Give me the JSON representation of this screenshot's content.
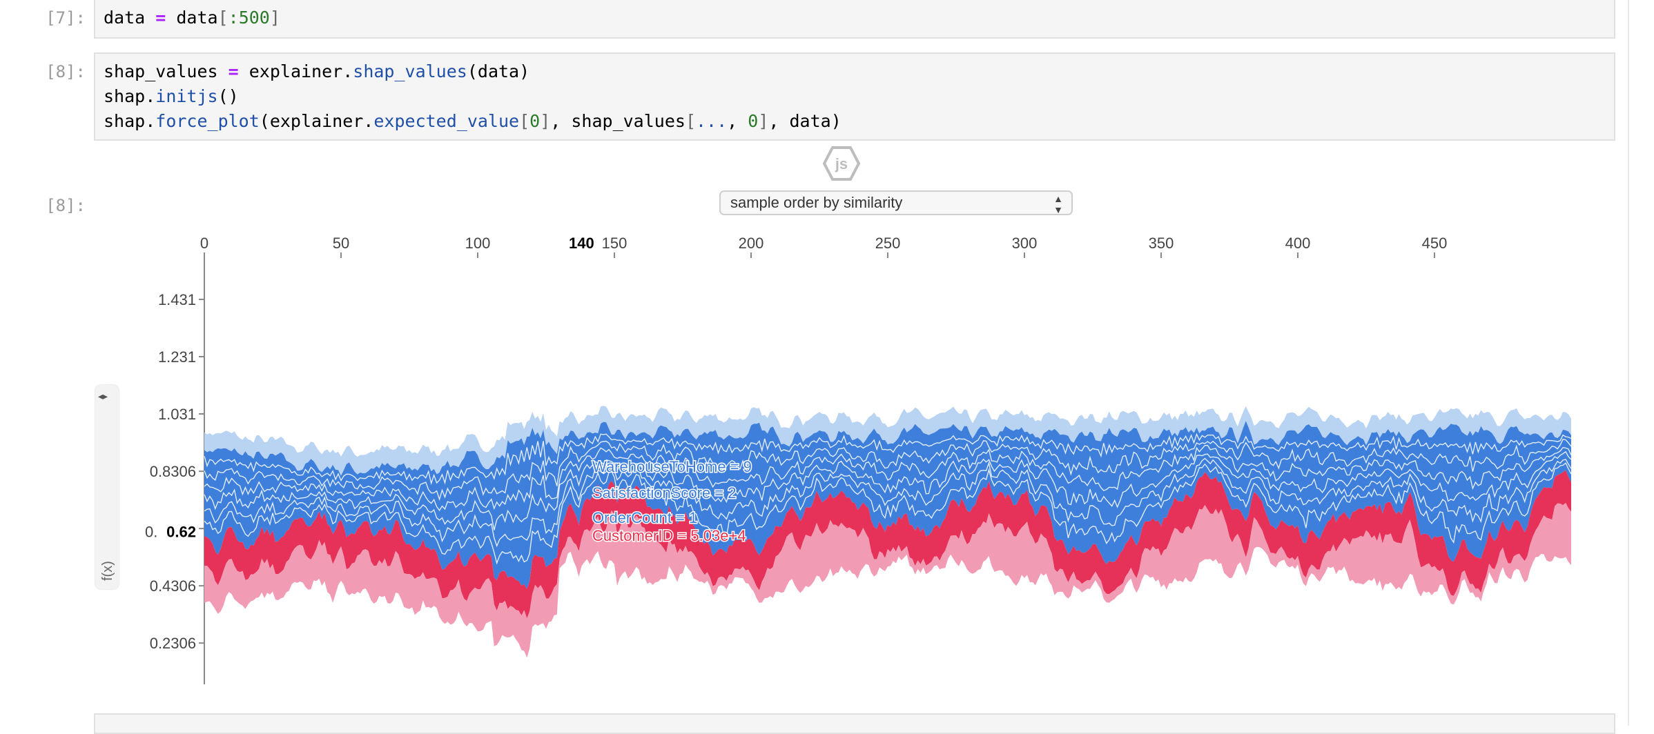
{
  "cells": [
    {
      "prompt": "[7]:"
    },
    {
      "prompt": "[8]:"
    },
    {
      "prompt": "[8]:"
    }
  ],
  "code": {
    "c7": {
      "a": "data ",
      "op": "=",
      "b": " data",
      "c": "[",
      "d": ":500",
      "e": "]"
    }
  },
  "badge": {
    "text": "js"
  },
  "ordering_select": {
    "value": "sample order by similarity",
    "arrows": "▲▼"
  },
  "zoom_panel": {
    "arrows": "◂▸",
    "label": "f(x)"
  },
  "chart_data": {
    "type": "area",
    "x_ticks": [
      "0",
      "50",
      "100",
      "150",
      "200",
      "250",
      "300",
      "350",
      "400",
      "450"
    ],
    "x_range": [
      0,
      500
    ],
    "hover_x": "140",
    "y_ticks": [
      "1.431",
      "1.231",
      "1.031",
      "0.8306",
      "0.6306",
      "0.4306",
      "0.2306"
    ],
    "y_range": [
      0.07,
      1.58
    ],
    "hover_fx": "0.62",
    "visible_partial_tick": "0.",
    "annotations": [
      {
        "text": "WarehouseToHome = 9",
        "color": "#3c7dd8"
      },
      {
        "text": "SatisfactionScore = 2",
        "color": "#3c7dd8"
      },
      {
        "text": "OrderCount = 1",
        "color": "#3c7dd8"
      },
      {
        "text": "CustomerID = 5.03e+4",
        "color": "#e8324e"
      }
    ],
    "colors": {
      "negative_light": "#b9d3f2",
      "negative_dark": "#3d7fdb",
      "positive_dark": "#e63258",
      "positive_light": "#f29bb4"
    }
  }
}
